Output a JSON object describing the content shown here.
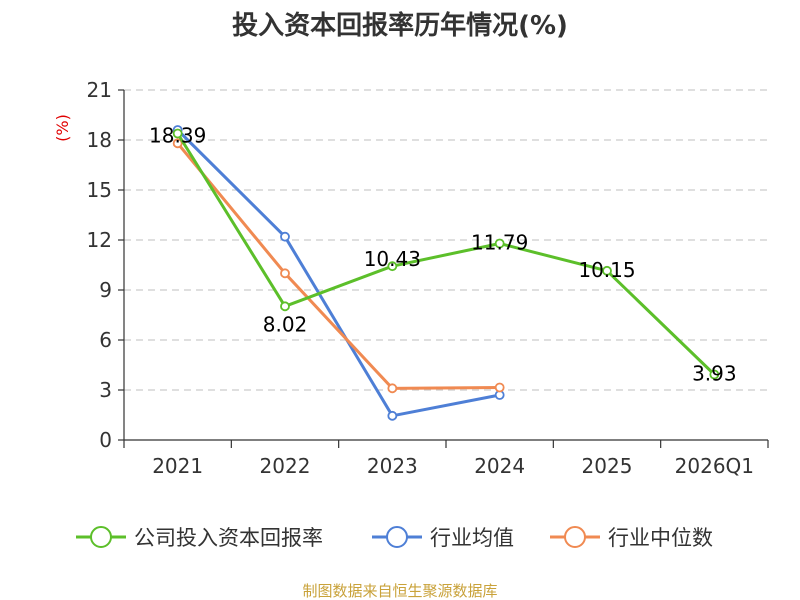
{
  "chart_data": {
    "type": "line",
    "title": "投入资本回报率历年情况(%)",
    "ylabel": "(%)",
    "ylim": [
      0,
      21
    ],
    "yticks": [
      0,
      3,
      6,
      9,
      12,
      15,
      18,
      21
    ],
    "categories": [
      "2021",
      "2022",
      "2023",
      "2024",
      "2025",
      "2026Q1"
    ],
    "grid": true,
    "legend_position": "bottom",
    "series": [
      {
        "name": "公司投入资本回报率",
        "color": "#5cbf2a",
        "values": [
          18.39,
          8.02,
          10.43,
          11.79,
          10.15,
          3.93
        ],
        "labels": [
          "18.39",
          "8.02",
          "10.43",
          "11.79",
          "10.15",
          "3.93"
        ],
        "show_labels": true
      },
      {
        "name": "行业均值",
        "color": "#4e7fd6",
        "values": [
          18.6,
          12.2,
          1.45,
          2.7,
          null,
          null
        ],
        "show_labels": false
      },
      {
        "name": "行业中位数",
        "color": "#f08a52",
        "values": [
          17.8,
          10.0,
          3.1,
          3.15,
          null,
          null
        ],
        "show_labels": false
      }
    ],
    "source": "制图数据来自恒生聚源数据库"
  }
}
